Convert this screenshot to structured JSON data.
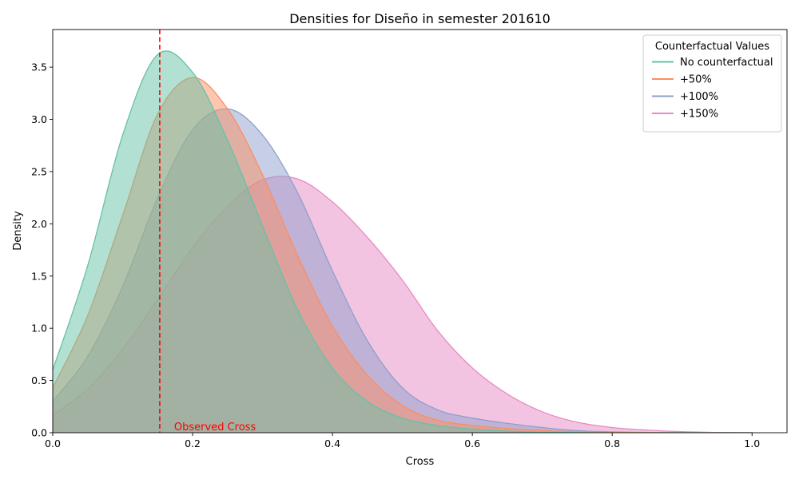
{
  "chart_data": {
    "type": "area",
    "title": "Densities for Diseño in semester 201610",
    "xlabel": "Cross",
    "ylabel": "Density",
    "xlim": [
      0.0,
      1.05
    ],
    "ylim": [
      0.0,
      3.86
    ],
    "xticks": [
      0.0,
      0.2,
      0.4,
      0.6,
      0.8,
      1.0
    ],
    "xtick_labels": [
      "0.0",
      "0.2",
      "0.4",
      "0.6",
      "0.8",
      "1.0"
    ],
    "yticks": [
      0.0,
      0.5,
      1.0,
      1.5,
      2.0,
      2.5,
      3.0,
      3.5
    ],
    "ytick_labels": [
      "0.0",
      "0.5",
      "1.0",
      "1.5",
      "2.0",
      "2.5",
      "3.0",
      "3.5"
    ],
    "grid": false,
    "legend": {
      "title": "Counterfactual Values",
      "placement": "top-right"
    },
    "reference_line": {
      "x": 0.153,
      "color": "#ff0000",
      "style": "dashed",
      "label": "Observed Cross"
    },
    "series": [
      {
        "name": "+150%",
        "color": "#e78ac3",
        "x": [
          0.0,
          0.05,
          0.1,
          0.15,
          0.2,
          0.25,
          0.3,
          0.35,
          0.4,
          0.45,
          0.5,
          0.55,
          0.6,
          0.65,
          0.7,
          0.75,
          0.8,
          0.85,
          0.9,
          0.95,
          1.0
        ],
        "y": [
          0.17,
          0.42,
          0.8,
          1.28,
          1.77,
          2.17,
          2.42,
          2.43,
          2.21,
          1.87,
          1.46,
          0.98,
          0.62,
          0.37,
          0.2,
          0.1,
          0.05,
          0.025,
          0.01,
          0.003,
          0.0
        ]
      },
      {
        "name": "+100%",
        "color": "#8da0cb",
        "x": [
          0.0,
          0.05,
          0.1,
          0.15,
          0.2,
          0.25,
          0.3,
          0.35,
          0.4,
          0.45,
          0.5,
          0.55,
          0.6,
          0.65,
          0.7,
          0.75,
          0.8,
          0.85,
          0.9,
          0.95,
          1.0
        ],
        "y": [
          0.3,
          0.73,
          1.4,
          2.25,
          2.9,
          3.1,
          2.85,
          2.3,
          1.55,
          0.88,
          0.43,
          0.22,
          0.14,
          0.09,
          0.05,
          0.02,
          0.008,
          0.003,
          0.001,
          0.0,
          0.0
        ]
      },
      {
        "name": "+50%",
        "color": "#fc8d62",
        "x": [
          0.0,
          0.05,
          0.1,
          0.15,
          0.2,
          0.25,
          0.3,
          0.35,
          0.4,
          0.45,
          0.5,
          0.55,
          0.6,
          0.65,
          0.7,
          0.75,
          0.8,
          0.85,
          0.9,
          0.95,
          1.0
        ],
        "y": [
          0.43,
          1.12,
          2.08,
          3.05,
          3.4,
          3.1,
          2.47,
          1.7,
          1.02,
          0.55,
          0.26,
          0.12,
          0.07,
          0.04,
          0.02,
          0.01,
          0.004,
          0.002,
          0.0,
          0.0,
          0.0
        ]
      },
      {
        "name": "No counterfactual",
        "color": "#66c2a5",
        "x": [
          0.0,
          0.05,
          0.1,
          0.15,
          0.2,
          0.25,
          0.3,
          0.35,
          0.4,
          0.45,
          0.5,
          0.55,
          0.6,
          0.65,
          0.7,
          0.75,
          0.8,
          0.85,
          0.9,
          0.95,
          1.0
        ],
        "y": [
          0.6,
          1.6,
          2.85,
          3.62,
          3.45,
          2.8,
          1.98,
          1.18,
          0.62,
          0.3,
          0.14,
          0.07,
          0.035,
          0.015,
          0.006,
          0.002,
          0.0,
          0.0,
          0.0,
          0.0,
          0.0
        ]
      }
    ],
    "legend_order": [
      "No counterfactual",
      "+50%",
      "+100%",
      "+150%"
    ]
  }
}
